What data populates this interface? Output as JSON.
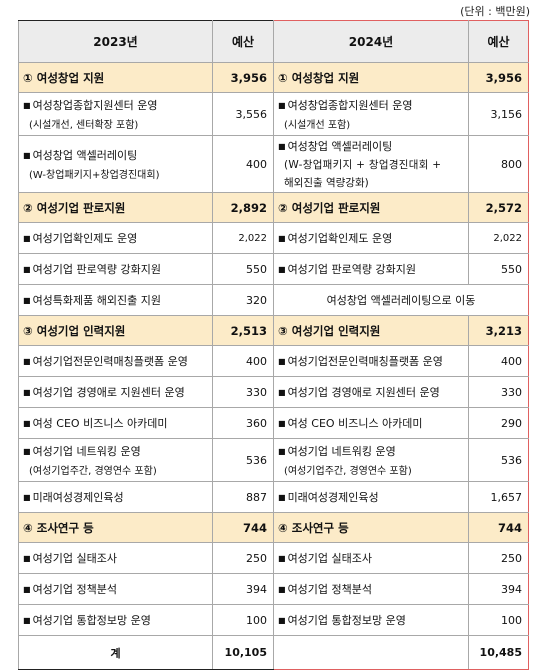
{
  "unit": "(단위 : 백만원)",
  "header": {
    "y2023": "2023년",
    "budget": "예산",
    "y2024": "2024년"
  },
  "rows": [
    {
      "type": "cat",
      "l": "① 여성창업 지원",
      "lv": "3,956",
      "r": "① 여성창업 지원",
      "rv": "3,956"
    },
    {
      "type": "item2",
      "l": "여성창업종합지원센터 운영",
      "lsub": "(시설개선, 센터확장 포함)",
      "lv": "3,556",
      "r": "여성창업종합지원센터 운영",
      "rsub": "(시설개선 포함)",
      "rv": "3,156"
    },
    {
      "type": "item3",
      "l": "여성창업 액셀러레이팅",
      "lsub": "(W-창업패키지+창업경진대회)",
      "lv": "400",
      "r": "여성창업 액셀러레이팅",
      "rl2": "(W-창업패키지 + 창업경진대회 +",
      "rl3": "해외진출 역량강화)",
      "rv": "800"
    },
    {
      "type": "cat",
      "l": "② 여성기업 판로지원",
      "lv": "2,892",
      "r": "② 여성기업 판로지원",
      "rv": "2,572"
    },
    {
      "type": "item",
      "l": "여성기업확인제도 운영",
      "lv": "2,022",
      "r": "여성기업확인제도 운영",
      "rv": "2,022",
      "small": true
    },
    {
      "type": "item",
      "l": "여성기업 판로역량 강화지원",
      "lv": "550",
      "r": "여성기업 판로역량 강화지원",
      "rv": "550"
    },
    {
      "type": "merged",
      "l": "여성특화제품 해외진출 지원",
      "lv": "320",
      "r": "여성창업 액셀러레이팅으로 이동"
    },
    {
      "type": "cat",
      "l": "③ 여성기업 인력지원",
      "lv": "2,513",
      "r": "③ 여성기업 인력지원",
      "rv": "3,213"
    },
    {
      "type": "item",
      "l": "여성기업전문인력매칭플랫폼 운영",
      "lv": "400",
      "r": "여성기업전문인력매칭플랫폼 운영",
      "rv": "400"
    },
    {
      "type": "item",
      "l": "여성기업 경영애로 지원센터 운영",
      "lv": "330",
      "r": "여성기업 경영애로 지원센터 운영",
      "rv": "330"
    },
    {
      "type": "item",
      "l": "여성 CEO 비즈니스 아카데미",
      "lv": "360",
      "r": "여성 CEO 비즈니스 아카데미",
      "rv": "290"
    },
    {
      "type": "item2",
      "l": "여성기업 네트워킹 운영",
      "lsub": "(여성기업주간, 경영연수 포함)",
      "lv": "536",
      "r": "여성기업 네트워킹 운영",
      "rsub": "(여성기업주간, 경영연수 포함)",
      "rv": "536"
    },
    {
      "type": "item",
      "l": "미래여성경제인육성",
      "lv": "887",
      "r": "미래여성경제인육성",
      "rv": "1,657"
    },
    {
      "type": "cat",
      "l": "④ 조사연구 등",
      "lv": "744",
      "r": "④ 조사연구 등",
      "rv": "744"
    },
    {
      "type": "item",
      "l": "여성기업 실태조사",
      "lv": "250",
      "r": "여성기업 실태조사",
      "rv": "250"
    },
    {
      "type": "item",
      "l": "여성기업 정책분석",
      "lv": "394",
      "r": "여성기업 정책분석",
      "rv": "394"
    },
    {
      "type": "item",
      "l": "여성기업 통합정보망 운영",
      "lv": "100",
      "r": "여성기업 통합정보망 운영",
      "rv": "100"
    },
    {
      "type": "total",
      "l": "계",
      "lv": "10,105",
      "r": "",
      "rv": "10,485"
    }
  ]
}
